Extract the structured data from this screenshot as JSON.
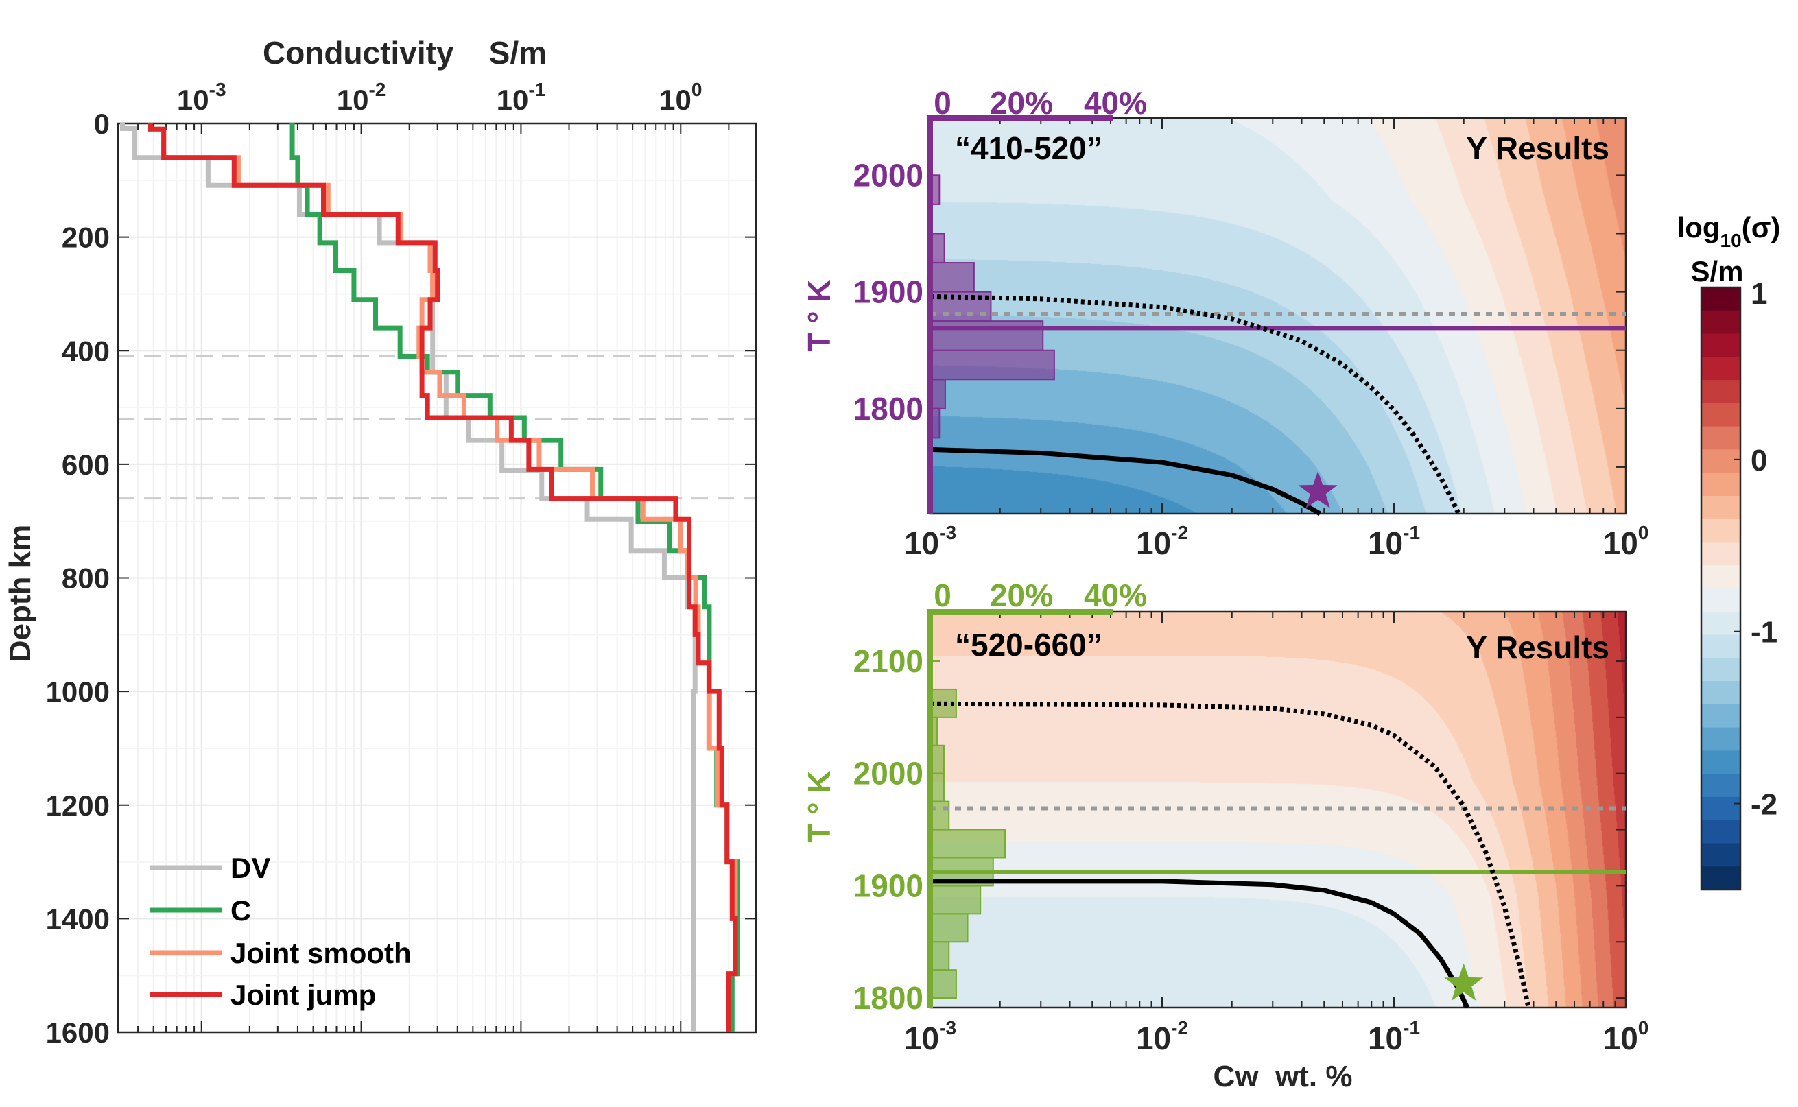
{
  "chart_data": [
    {
      "type": "line",
      "xlabel": "Conductivity    S/m",
      "ylabel": "Depth km",
      "xscale": "log",
      "xlim": [
        0.0003,
        2.96
      ],
      "ylim": [
        1600,
        0
      ],
      "xtick_values": [
        0.001,
        0.01,
        0.1,
        1
      ],
      "xtick_labels": [
        {
          "base": "10",
          "exp": "-3"
        },
        {
          "base": "10",
          "exp": "-2"
        },
        {
          "base": "10",
          "exp": "-1"
        },
        {
          "base": "10",
          "exp": "0"
        }
      ],
      "ytick_values": [
        0,
        200,
        400,
        600,
        800,
        1000,
        1200,
        1400,
        1600
      ],
      "ytick_labels": [
        "0",
        "200",
        "400",
        "600",
        "800",
        "1000",
        "1200",
        "1400",
        "1600"
      ],
      "grid": true,
      "legend": "bottom-left",
      "reference_depths": [
        410,
        520,
        660
      ],
      "reference_color": "#cccccc",
      "series": [
        {
          "name": "DV",
          "color": "#bfbfbf",
          "layers": [
            [
              0,
              9,
              0.00032
            ],
            [
              9,
              60,
              0.00038
            ],
            [
              60,
              109,
              0.0011
            ],
            [
              109,
              160,
              0.0041
            ],
            [
              160,
              210,
              0.013
            ],
            [
              210,
              438,
              0.028
            ],
            [
              438,
              518,
              0.034
            ],
            [
              518,
              558,
              0.047
            ],
            [
              558,
              611,
              0.076
            ],
            [
              611,
              660,
              0.135
            ],
            [
              660,
              697,
              0.26
            ],
            [
              697,
              752,
              0.49
            ],
            [
              752,
              800,
              0.79
            ],
            [
              800,
              851,
              1.1
            ],
            [
              851,
              1000,
              1.23
            ],
            [
              1000,
              1600,
              1.2
            ]
          ]
        },
        {
          "name": "C",
          "color": "#2ea555",
          "layers": [
            [
              0,
              60,
              0.0037
            ],
            [
              60,
              109,
              0.004
            ],
            [
              109,
              160,
              0.0046
            ],
            [
              160,
              210,
              0.0055
            ],
            [
              210,
              259,
              0.0069
            ],
            [
              259,
              310,
              0.009
            ],
            [
              310,
              360,
              0.0123
            ],
            [
              360,
              410,
              0.0175
            ],
            [
              410,
              438,
              0.026
            ],
            [
              438,
              479,
              0.04
            ],
            [
              479,
              518,
              0.064
            ],
            [
              518,
              558,
              0.105
            ],
            [
              558,
              609,
              0.178
            ],
            [
              609,
              660,
              0.316
            ],
            [
              660,
              701,
              0.54
            ],
            [
              701,
              752,
              0.85
            ],
            [
              752,
              800,
              1.12
            ],
            [
              800,
              851,
              1.41
            ],
            [
              851,
              1100,
              1.51
            ],
            [
              1100,
              1200,
              1.68
            ],
            [
              1200,
              1300,
              1.95
            ],
            [
              1300,
              1497,
              2.26
            ],
            [
              1497,
              1600,
              2.1
            ]
          ]
        },
        {
          "name": "Joint smooth",
          "color": "#fc9272",
          "layers": [
            [
              0,
              10,
              0.00048
            ],
            [
              10,
              60,
              0.00058
            ],
            [
              60,
              109,
              0.0017
            ],
            [
              109,
              160,
              0.0062
            ],
            [
              160,
              210,
              0.0177
            ],
            [
              210,
              259,
              0.027
            ],
            [
              259,
              310,
              0.028
            ],
            [
              310,
              360,
              0.024
            ],
            [
              360,
              410,
              0.023
            ],
            [
              410,
              438,
              0.024
            ],
            [
              438,
              479,
              0.031
            ],
            [
              479,
              518,
              0.044
            ],
            [
              518,
              558,
              0.071
            ],
            [
              558,
              609,
              0.13
            ],
            [
              609,
              660,
              0.28
            ],
            [
              660,
              697,
              0.58
            ],
            [
              697,
              752,
              1.0
            ],
            [
              752,
              800,
              1.1
            ],
            [
              800,
              851,
              1.24
            ],
            [
              851,
              950,
              1.29
            ],
            [
              950,
              1100,
              1.5
            ],
            [
              1100,
              1200,
              1.7
            ],
            [
              1200,
              1300,
              1.95
            ],
            [
              1300,
              1497,
              2.2
            ],
            [
              1497,
              1600,
              2.0
            ]
          ]
        },
        {
          "name": "Joint jump",
          "color": "#e0282a",
          "layers": [
            [
              0,
              10,
              0.00048
            ],
            [
              10,
              60,
              0.00058
            ],
            [
              60,
              109,
              0.0016
            ],
            [
              109,
              160,
              0.0058
            ],
            [
              160,
              210,
              0.017
            ],
            [
              210,
              259,
              0.029
            ],
            [
              259,
              310,
              0.03
            ],
            [
              310,
              360,
              0.027
            ],
            [
              360,
              479,
              0.024
            ],
            [
              479,
              518,
              0.026
            ],
            [
              518,
              558,
              0.087
            ],
            [
              558,
              609,
              0.112
            ],
            [
              609,
              660,
              0.155
            ],
            [
              660,
              697,
              0.93
            ],
            [
              697,
              851,
              1.13
            ],
            [
              851,
              900,
              1.23
            ],
            [
              900,
              950,
              1.29
            ],
            [
              950,
              1000,
              1.51
            ],
            [
              1000,
              1100,
              1.74
            ],
            [
              1100,
              1200,
              1.81
            ],
            [
              1200,
              1300,
              1.95
            ],
            [
              1300,
              1400,
              2.1
            ],
            [
              1400,
              1497,
              2.2
            ],
            [
              1497,
              1600,
              2.0
            ]
          ]
        }
      ]
    },
    {
      "type": "heatmap",
      "annotation": "“410-520”",
      "label": "Y Results",
      "ylabel": "T ° K",
      "xscale": "log",
      "xlim": [
        0.001,
        1
      ],
      "ylim": [
        1710,
        2049
      ],
      "xtick_labels": [
        {
          "base": "10",
          "exp": "-3"
        },
        {
          "base": "10",
          "exp": "-2"
        },
        {
          "base": "10",
          "exp": "-1"
        },
        {
          "base": "10",
          "exp": "0"
        }
      ],
      "ytick_values": [
        1800,
        1900,
        2000
      ],
      "ytick_labels": [
        "1800",
        "1900",
        "2000"
      ],
      "accent_color": "#7e2f8e",
      "histogram": {
        "axis_labels": [
          "0",
          "20%",
          "40%"
        ],
        "axis_max_percent": 40,
        "bin_edges": [
          1775,
          1800,
          1825,
          1850,
          1875,
          1900,
          1925,
          1950,
          1975,
          2000
        ],
        "percent": [
          2,
          3.3,
          27.2,
          24.7,
          13.3,
          9.6,
          3.1,
          0,
          2
        ]
      },
      "hline_solid_T": 1869,
      "hline_dotted_T": 1881,
      "dotted_curve": {
        "c": [
          0.001,
          0.003,
          0.01,
          0.02,
          0.04,
          0.06,
          0.08,
          0.1,
          0.12,
          0.14,
          0.16,
          0.18,
          0.19
        ],
        "T": [
          1896,
          1894,
          1887,
          1877,
          1858,
          1838,
          1818,
          1799,
          1779,
          1759,
          1740,
          1720,
          1710
        ]
      },
      "solid_curve": {
        "c": [
          0.001,
          0.003,
          0.01,
          0.02,
          0.03,
          0.04,
          0.048
        ],
        "T": [
          1765,
          1762,
          1754,
          1743,
          1731,
          1719,
          1710
        ]
      },
      "star": {
        "c": 0.047,
        "T": 1729
      }
    },
    {
      "type": "heatmap",
      "annotation": "“520-660”",
      "label": "Y Results",
      "xlabel": "Cw  wt. %",
      "ylabel": "T ° K",
      "xscale": "log",
      "xlim": [
        0.001,
        1
      ],
      "ylim": [
        1791.5,
        2144
      ],
      "xtick_labels": [
        {
          "base": "10",
          "exp": "-3"
        },
        {
          "base": "10",
          "exp": "-2"
        },
        {
          "base": "10",
          "exp": "-1"
        },
        {
          "base": "10",
          "exp": "0"
        }
      ],
      "ytick_values": [
        1800,
        1900,
        2000,
        2100
      ],
      "ytick_labels": [
        "1800",
        "1900",
        "2000",
        "2100"
      ],
      "accent_color": "#77ac30",
      "histogram": {
        "axis_labels": [
          "0",
          "20%",
          "40%"
        ],
        "axis_max_percent": 40,
        "bin_edges": [
          1800,
          1825,
          1850,
          1875,
          1900,
          1925,
          1950,
          1975,
          2000,
          2025,
          2050,
          2075
        ],
        "percent": [
          5.7,
          4.1,
          8.2,
          11,
          13.8,
          16.4,
          4.1,
          3,
          3,
          1.5,
          5.7
        ]
      },
      "hline_solid_T": 1912,
      "hline_dotted_T": 1969,
      "dotted_curve": {
        "c": [
          0.001,
          0.01,
          0.03,
          0.05,
          0.08,
          0.1,
          0.15,
          0.2,
          0.25,
          0.3,
          0.35,
          0.38
        ],
        "T": [
          2062,
          2061,
          2058,
          2053,
          2043,
          2034,
          2006,
          1971,
          1929,
          1881,
          1827,
          1791.5
        ]
      },
      "solid_curve": {
        "c": [
          0.001,
          0.01,
          0.03,
          0.05,
          0.08,
          0.1,
          0.13,
          0.16,
          0.19,
          0.207
        ],
        "T": [
          1904,
          1904,
          1901,
          1896,
          1885,
          1875,
          1857,
          1834,
          1808,
          1791.5
        ]
      },
      "star": {
        "c": 0.2,
        "T": 1812.5
      }
    }
  ],
  "colorbar": {
    "title_main": "log",
    "title_sub": "10",
    "title_tail": "(σ)",
    "unit": "S/m",
    "range": [
      -2.5,
      1
    ],
    "ticks": [
      1,
      0,
      -1,
      -2
    ],
    "tick_labels": [
      "1",
      "0",
      "-1",
      "-2"
    ],
    "colors": [
      "#67001f",
      "#870a24",
      "#a1122a",
      "#b5212e",
      "#c43c3c",
      "#d4584a",
      "#e17861",
      "#eb9172",
      "#f4a582",
      "#f7bb9b",
      "#fbd0b9",
      "#fae0d2",
      "#f6ede6",
      "#e9eff2",
      "#dbe9f1",
      "#c7e0ed",
      "#b0d5e6",
      "#97c7df",
      "#79b5d7",
      "#5ca2cc",
      "#4390c3",
      "#347dba",
      "#2667ad",
      "#1b549a",
      "#124180",
      "#0a3161"
    ]
  }
}
